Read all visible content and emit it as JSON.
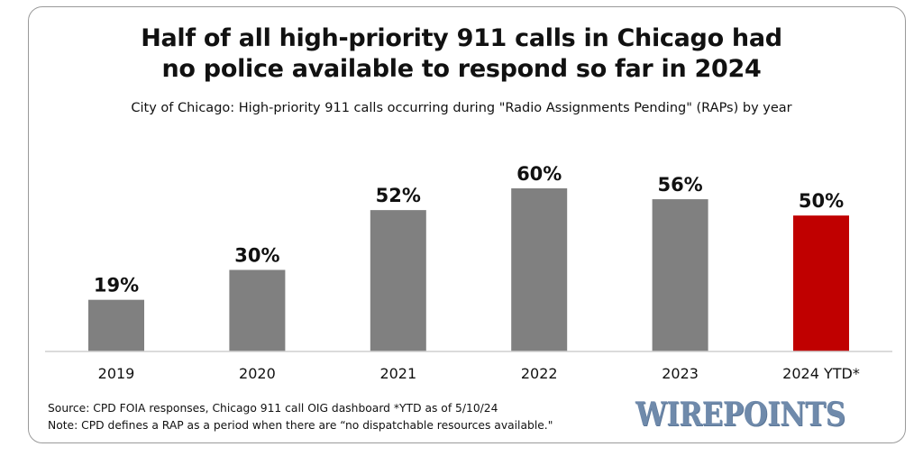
{
  "title_line1": "Half of all high-priority 911 calls in Chicago had",
  "title_line2": "no police available to respond so far in 2024",
  "subtitle": "City of Chicago: High-priority 911 calls occurring during \"Radio Assignments Pending\" (RAPs) by year",
  "source_line1": "Source: CPD FOIA responses, Chicago 911 call OIG dashboard  *YTD as of  5/10/24",
  "source_line2": "Note: CPD defines a RAP as a period when there are “no dispatchable resources available.\"",
  "logo_text": "WIREPOINTS",
  "chart_data": {
    "type": "bar",
    "title": "Half of all high-priority 911 calls in Chicago had no police available to respond so far in 2024",
    "subtitle": "City of Chicago: High-priority 911 calls occurring during \"Radio Assignments Pending\" (RAPs) by year",
    "categories": [
      "2019",
      "2020",
      "2021",
      "2022",
      "2023",
      "2024 YTD*"
    ],
    "values": [
      19,
      30,
      52,
      60,
      56,
      50
    ],
    "value_labels": [
      "19%",
      "30%",
      "52%",
      "60%",
      "56%",
      "50%"
    ],
    "unit": "%",
    "ylim": [
      0,
      60
    ],
    "grid": false,
    "legend": "none",
    "colors": [
      "#808080",
      "#808080",
      "#808080",
      "#808080",
      "#808080",
      "#c00000"
    ]
  }
}
